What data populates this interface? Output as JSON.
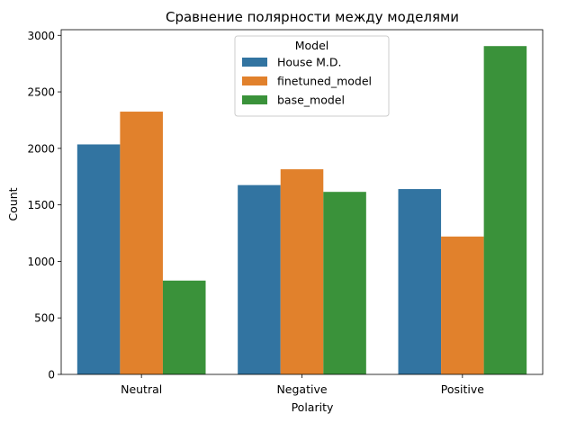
{
  "chart_data": {
    "type": "bar",
    "title": "Сравнение полярности между моделями",
    "xlabel": "Polarity",
    "ylabel": "Count",
    "categories": [
      "Neutral",
      "Negative",
      "Positive"
    ],
    "ylim": [
      0,
      3050
    ],
    "yticks": [
      0,
      500,
      1000,
      1500,
      2000,
      2500,
      3000
    ],
    "grid": false,
    "legend": {
      "title": "Model",
      "placement": "upper center"
    },
    "series": [
      {
        "name": "House M.D.",
        "color": "#3274a1",
        "values": [
          2035,
          1675,
          1640
        ]
      },
      {
        "name": "finetuned_model",
        "color": "#e1812c",
        "values": [
          2325,
          1815,
          1220
        ]
      },
      {
        "name": "base_model",
        "color": "#3a923a",
        "values": [
          830,
          1615,
          2905
        ]
      }
    ]
  }
}
